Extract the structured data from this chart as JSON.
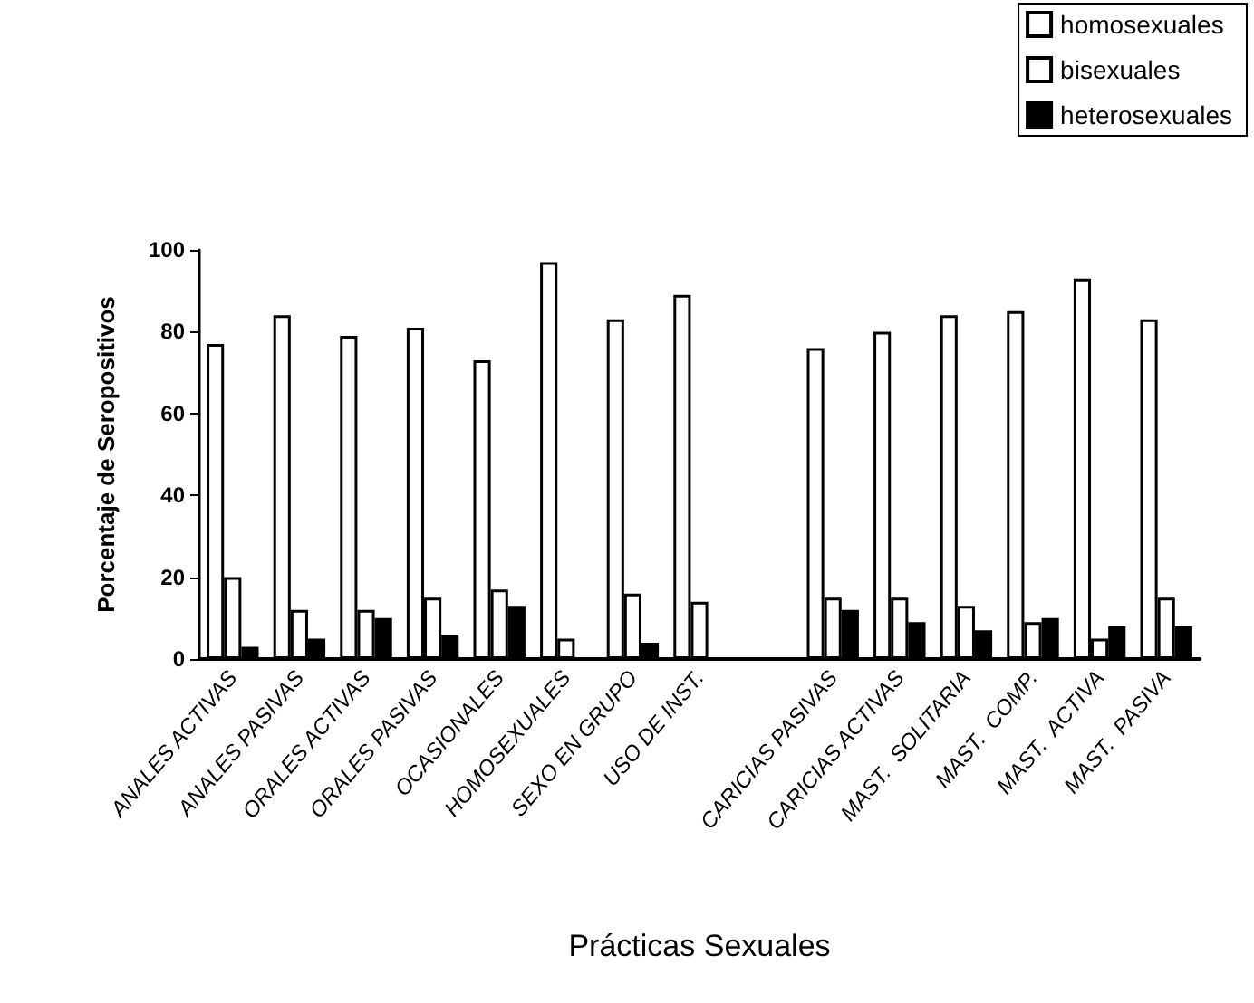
{
  "chart_data": {
    "type": "bar",
    "xlabel": "Prácticas Sexuales",
    "ylabel": "Porcentaje de Seropositivos",
    "categories": [
      "ANALES ACTIVAS",
      "ANALES PASIVAS",
      "ORALES ACTIVAS",
      "ORALES PASIVAS",
      "OCASIONALES",
      "HOMOSEXUALES",
      "SEXO EN GRUPO",
      "USO DE INST.",
      null,
      "CARICIAS PASIVAS",
      "CARICIAS ACTIVAS",
      "MAST.  SOLITARIA",
      "MAST.  COMP.",
      "MAST.  ACTIVA",
      "MAST.  PASIVA"
    ],
    "series": [
      {
        "name": "homosexuales",
        "color": "#ffffff",
        "values": [
          77,
          84,
          79,
          81,
          73,
          97,
          83,
          89,
          null,
          76,
          80,
          84,
          85,
          93,
          83
        ]
      },
      {
        "name": "bisexuales",
        "color": "#ffffff",
        "values": [
          20,
          12,
          12,
          15,
          17,
          5,
          16,
          14,
          null,
          15,
          15,
          13,
          9,
          5,
          15
        ]
      },
      {
        "name": "heterosexuales",
        "color": "#000000",
        "values": [
          3,
          5,
          10,
          6,
          13,
          0,
          4,
          0,
          null,
          12,
          9,
          7,
          10,
          8,
          8
        ]
      }
    ],
    "ylim": [
      0,
      100
    ],
    "yticks": [
      0,
      20,
      40,
      60,
      80,
      100
    ],
    "grid": false,
    "legend": "top right"
  }
}
